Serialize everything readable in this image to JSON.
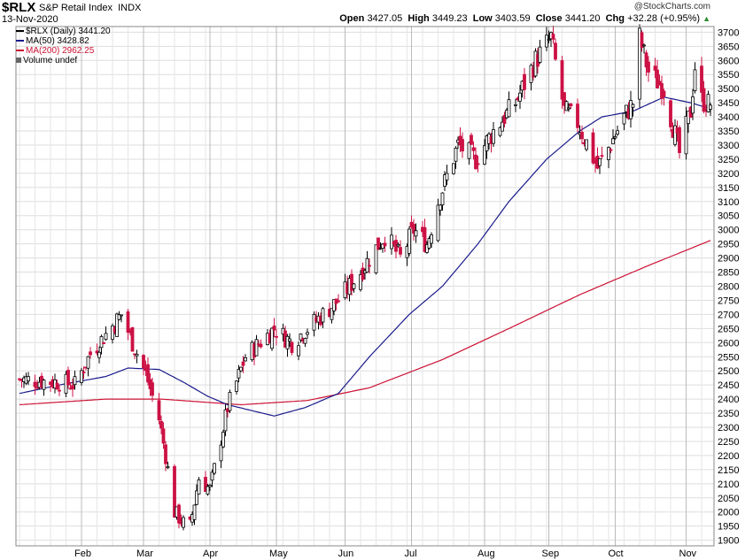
{
  "header": {
    "symbol": "$RLX",
    "index_name": "S&P Retail Index",
    "exchange": "INDX",
    "date": "13-Nov-2020",
    "watermark": "@StockCharts.com",
    "open_label": "Open",
    "open": "3427.05",
    "high_label": "High",
    "high": "3449.23",
    "low_label": "Low",
    "low": "3403.59",
    "close_label": "Close",
    "close": "3441.20",
    "chg_label": "Chg",
    "chg": "+32.28 (+0.95%)",
    "chg_arrow": "▲"
  },
  "legend": {
    "price": "$RLX (Daily) 3441.20",
    "ma50": "MA(50) 3428.82",
    "ma200": "MA(200) 2962.25",
    "volume": "Volume undef"
  },
  "colors": {
    "up_candle": "#000000",
    "down_candle": "#cc1144",
    "ma50": "#1a1a8c",
    "ma200": "#cc1133",
    "grid": "#dddddd",
    "gain": "#2e8b2e"
  },
  "chart_data": {
    "type": "candlestick",
    "title": "$RLX S&P Retail Index INDX",
    "x_labels": [
      "Feb",
      "Mar",
      "Apr",
      "May",
      "Jun",
      "Jul",
      "Aug",
      "Sep",
      "Oct",
      "Nov"
    ],
    "x_label_dates": [
      "2020-02-03",
      "2020-03-02",
      "2020-04-01",
      "2020-05-01",
      "2020-06-01",
      "2020-07-01",
      "2020-08-03",
      "2020-09-01",
      "2020-10-01",
      "2020-11-02"
    ],
    "date_range": [
      "2020-01-06",
      "2020-11-13"
    ],
    "y_ticks": [
      1900,
      1950,
      2000,
      2050,
      2100,
      2150,
      2200,
      2250,
      2300,
      2350,
      2400,
      2450,
      2500,
      2550,
      2600,
      2650,
      2700,
      2750,
      2800,
      2850,
      2900,
      2950,
      3000,
      3050,
      3100,
      3150,
      3200,
      3250,
      3300,
      3350,
      3400,
      3450,
      3500,
      3550,
      3600,
      3650,
      3700
    ],
    "ylim": [
      1880,
      3720
    ],
    "y_axis_side": "right",
    "close_keypoints": [
      [
        "2020-01-06",
        2470
      ],
      [
        "2020-01-24",
        2460
      ],
      [
        "2020-01-31",
        2450
      ],
      [
        "2020-02-07",
        2560
      ],
      [
        "2020-02-21",
        2700
      ],
      [
        "2020-02-26",
        2600
      ],
      [
        "2020-03-03",
        2490
      ],
      [
        "2020-03-09",
        2330
      ],
      [
        "2020-03-12",
        2200
      ],
      [
        "2020-03-16",
        2000
      ],
      [
        "2020-03-20",
        1960
      ],
      [
        "2020-03-23",
        1950
      ],
      [
        "2020-03-27",
        2120
      ],
      [
        "2020-04-01",
        2080
      ],
      [
        "2020-04-09",
        2370
      ],
      [
        "2020-04-17",
        2550
      ],
      [
        "2020-04-30",
        2650
      ],
      [
        "2020-05-08",
        2600
      ],
      [
        "2020-05-15",
        2650
      ],
      [
        "2020-05-29",
        2750
      ],
      [
        "2020-06-08",
        2850
      ],
      [
        "2020-06-12",
        2900
      ],
      [
        "2020-06-19",
        2980
      ],
      [
        "2020-06-26",
        2900
      ],
      [
        "2020-07-02",
        3000
      ],
      [
        "2020-07-08",
        2950
      ],
      [
        "2020-07-13",
        3100
      ],
      [
        "2020-07-22",
        3300
      ],
      [
        "2020-07-30",
        3250
      ],
      [
        "2020-08-07",
        3350
      ],
      [
        "2020-08-17",
        3450
      ],
      [
        "2020-08-26",
        3600
      ],
      [
        "2020-09-02",
        3680
      ],
      [
        "2020-09-08",
        3420
      ],
      [
        "2020-09-14",
        3380
      ],
      [
        "2020-09-23",
        3220
      ],
      [
        "2020-09-28",
        3290
      ],
      [
        "2020-10-05",
        3400
      ],
      [
        "2020-10-09",
        3450
      ],
      [
        "2020-10-12",
        3680
      ],
      [
        "2020-10-16",
        3560
      ],
      [
        "2020-10-23",
        3500
      ],
      [
        "2020-10-30",
        3270
      ],
      [
        "2020-11-04",
        3420
      ],
      [
        "2020-11-06",
        3580
      ],
      [
        "2020-11-09",
        3460
      ],
      [
        "2020-11-13",
        3441.2
      ]
    ],
    "last_candle": {
      "date": "2020-11-13",
      "open": 3427.05,
      "high": 3449.23,
      "low": 3403.59,
      "close": 3441.2
    },
    "ma50_keypoints": [
      [
        "2020-01-06",
        2420
      ],
      [
        "2020-01-24",
        2450
      ],
      [
        "2020-02-14",
        2480
      ],
      [
        "2020-02-24",
        2510
      ],
      [
        "2020-03-09",
        2505
      ],
      [
        "2020-03-20",
        2460
      ],
      [
        "2020-03-31",
        2410
      ],
      [
        "2020-04-09",
        2380
      ],
      [
        "2020-04-30",
        2340
      ],
      [
        "2020-05-14",
        2370
      ],
      [
        "2020-05-29",
        2420
      ],
      [
        "2020-06-12",
        2550
      ],
      [
        "2020-06-30",
        2700
      ],
      [
        "2020-07-15",
        2800
      ],
      [
        "2020-07-31",
        2950
      ],
      [
        "2020-08-14",
        3100
      ],
      [
        "2020-08-31",
        3250
      ],
      [
        "2020-09-15",
        3350
      ],
      [
        "2020-09-25",
        3400
      ],
      [
        "2020-10-09",
        3420
      ],
      [
        "2020-10-23",
        3470
      ],
      [
        "2020-11-04",
        3450
      ],
      [
        "2020-11-13",
        3428.82
      ]
    ],
    "ma200_keypoints": [
      [
        "2020-01-06",
        2380
      ],
      [
        "2020-02-14",
        2400
      ],
      [
        "2020-03-10",
        2400
      ],
      [
        "2020-04-15",
        2380
      ],
      [
        "2020-05-15",
        2395
      ],
      [
        "2020-06-12",
        2440
      ],
      [
        "2020-07-15",
        2540
      ],
      [
        "2020-08-14",
        2650
      ],
      [
        "2020-09-15",
        2770
      ],
      [
        "2020-10-15",
        2870
      ],
      [
        "2020-11-13",
        2962.25
      ]
    ],
    "series": [
      {
        "name": "$RLX (Daily)",
        "last": 3441.2
      },
      {
        "name": "MA(50)",
        "last": 3428.82
      },
      {
        "name": "MA(200)",
        "last": 2962.25
      }
    ],
    "grid": true,
    "legend_position": "top-left"
  }
}
